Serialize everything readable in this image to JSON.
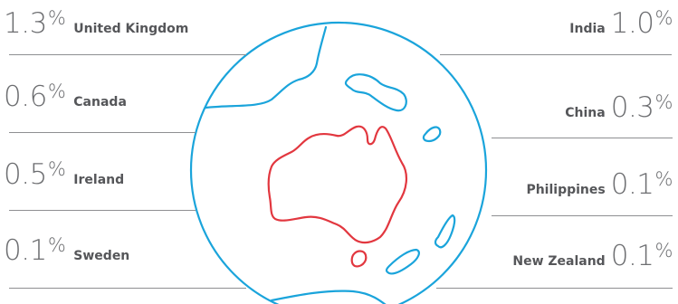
{
  "left_stats": [
    {
      "value": "1.3",
      "symbol": "%",
      "country": "United Kingdom"
    },
    {
      "value": "0.6",
      "symbol": "%",
      "country": "Canada"
    },
    {
      "value": "0.5",
      "symbol": "%",
      "country": "Ireland"
    },
    {
      "value": "0.1",
      "symbol": "%",
      "country": "Sweden"
    }
  ],
  "right_stats": [
    {
      "value": "1.0",
      "symbol": "%",
      "country": "India"
    },
    {
      "value": "0.3",
      "symbol": "%",
      "country": "China"
    },
    {
      "value": "0.1",
      "symbol": "%",
      "country": "Philippines"
    },
    {
      "value": "0.1",
      "symbol": "%",
      "country": "New Zealand"
    }
  ],
  "colors": {
    "globe_outline": "#1aa4db",
    "australia": "#e2373f",
    "text": "#6d6e71",
    "rule": "#8e8f92"
  }
}
